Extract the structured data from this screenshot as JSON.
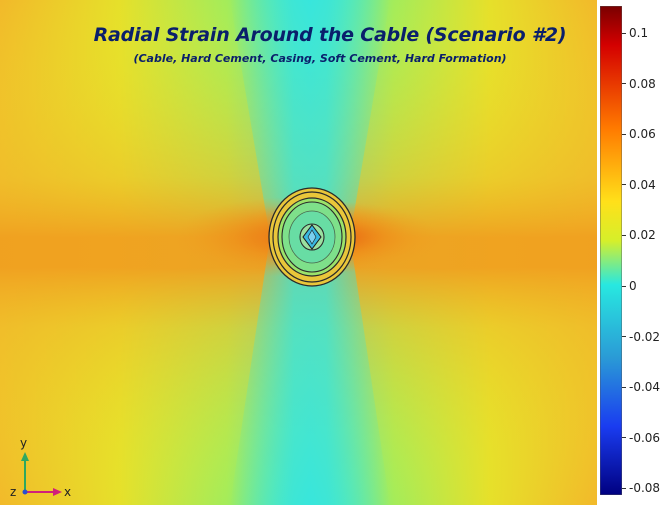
{
  "figure": {
    "title": "Radial Strain Around the Cable (Scenario #2)",
    "subtitle": "(Cable, Hard Cement, Casing, Soft Cement, Hard Formation)"
  },
  "colorbar": {
    "ticks": [
      "0.1",
      "0.08",
      "0.06",
      "0.04",
      "0.02",
      "0",
      "-0.02",
      "-0.04",
      "-0.06",
      "-0.08"
    ],
    "tick_values": [
      0.1,
      0.08,
      0.06,
      0.04,
      0.02,
      0,
      -0.02,
      -0.04,
      -0.06,
      -0.08
    ],
    "colors": [
      "#7a0000",
      "#d40000",
      "#ff7a00",
      "#ffe01a",
      "#d6ef2a",
      "#28e8e0",
      "#2a9ad6",
      "#1a3cf0",
      "#000080"
    ]
  },
  "triad": {
    "y_label": "y",
    "z_label": "z",
    "x_label": "x"
  },
  "field": {
    "colors": {
      "cyan": "#38e6dc",
      "yellow": "#e8ee2e",
      "orange": "#f0a020",
      "hot": "#e86a10"
    }
  }
}
